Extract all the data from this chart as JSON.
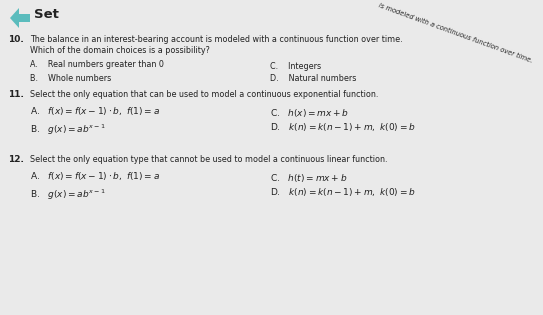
{
  "bg_color": "#eaeaea",
  "title": "Set",
  "icon_color": "#5bbcbd",
  "text_color": "#222222",
  "diagonal_line1": "is modeled with a continuous function over time.",
  "q10_num": "10.",
  "q10_line1": "The balance in an interest-bearing account is modeled with a continuous function over time.",
  "q10_line2": "Which of the domain choices is a possibility?",
  "q10_A": "A.    Real numbers greater than 0",
  "q10_B": "B.    Whole numbers",
  "q10_C": "C.    Integers",
  "q10_D": "D.    Natural numbers",
  "q11_num": "11.",
  "q11_line1": "Select the only equation that can be used to model a continuous exponential function.",
  "q11_A_plain": "A.   ",
  "q11_A_math": "$f(x) = f(x-1) \\cdot b,\\ f(1) = a$",
  "q11_B_plain": "B.   ",
  "q11_B_math": "$g(x) = ab^{x-1}$",
  "q11_C_plain": "C.   ",
  "q11_C_math": "$h(x) = mx + b$",
  "q11_D_plain": "D.   ",
  "q11_D_math": "$k(n) = k(n-1) + m,\\ k(0) = b$",
  "q12_num": "12.",
  "q12_line1": "Select the only equation type that cannot be used to model a continuous linear function.",
  "q12_A_plain": "A.   ",
  "q12_A_math": "$f(x) = f(x-1) \\cdot b,\\ f(1) = a$",
  "q12_B_plain": "B.   ",
  "q12_B_math": "$g(x) = ab^{x-1}$",
  "q12_C_plain": "C.   ",
  "q12_C_math": "$h(t) = mx + b$",
  "q12_D_plain": "D.   ",
  "q12_D_math": "$k(n) = k(n-1) + m,\\ k(0) = b$",
  "fs_title": 9.5,
  "fs_num": 6.5,
  "fs_body": 5.8,
  "fs_math": 6.5
}
